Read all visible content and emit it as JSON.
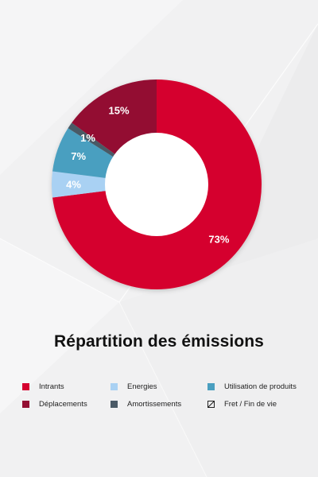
{
  "colors": {
    "background": "#f2f2f3",
    "intrants": "#d5002f",
    "energies": "#a9d1f3",
    "utilisation": "#4a9fc0",
    "deplacements": "#930f32",
    "amortissements": "#4a5a66",
    "hole": "#ffffff",
    "label": "#ffffff"
  },
  "chart_data": {
    "type": "pie",
    "variant": "donut",
    "title": "Répartition des émissions",
    "start": "top",
    "direction": "clockwise",
    "slices": [
      {
        "name": "Intrants",
        "value": 73,
        "label": "73%",
        "color": "#d5002f"
      },
      {
        "name": "Energies",
        "value": 4,
        "label": "4%",
        "color": "#a9d1f3"
      },
      {
        "name": "Utilisation de produits",
        "value": 7,
        "label": "7%",
        "color": "#4a9fc0"
      },
      {
        "name": "Amortissements",
        "value": 1,
        "label": "1%",
        "color": "#4a5a66"
      },
      {
        "name": "Déplacements",
        "value": 15,
        "label": "15%",
        "color": "#930f32"
      }
    ],
    "legend_position": "bottom"
  },
  "legend": {
    "items": [
      {
        "label": "Intrants",
        "color": "#d5002f",
        "style": "solid"
      },
      {
        "label": "Energies",
        "color": "#a9d1f3",
        "style": "solid"
      },
      {
        "label": "Utilisation de produits",
        "color": "#4a9fc0",
        "style": "solid"
      },
      {
        "label": "Déplacements",
        "color": "#930f32",
        "style": "solid"
      },
      {
        "label": "Amortissements",
        "color": "#4a5a66",
        "style": "solid"
      },
      {
        "label": "Fret / Fin de vie",
        "color": "#222222",
        "style": "hatched"
      }
    ]
  }
}
